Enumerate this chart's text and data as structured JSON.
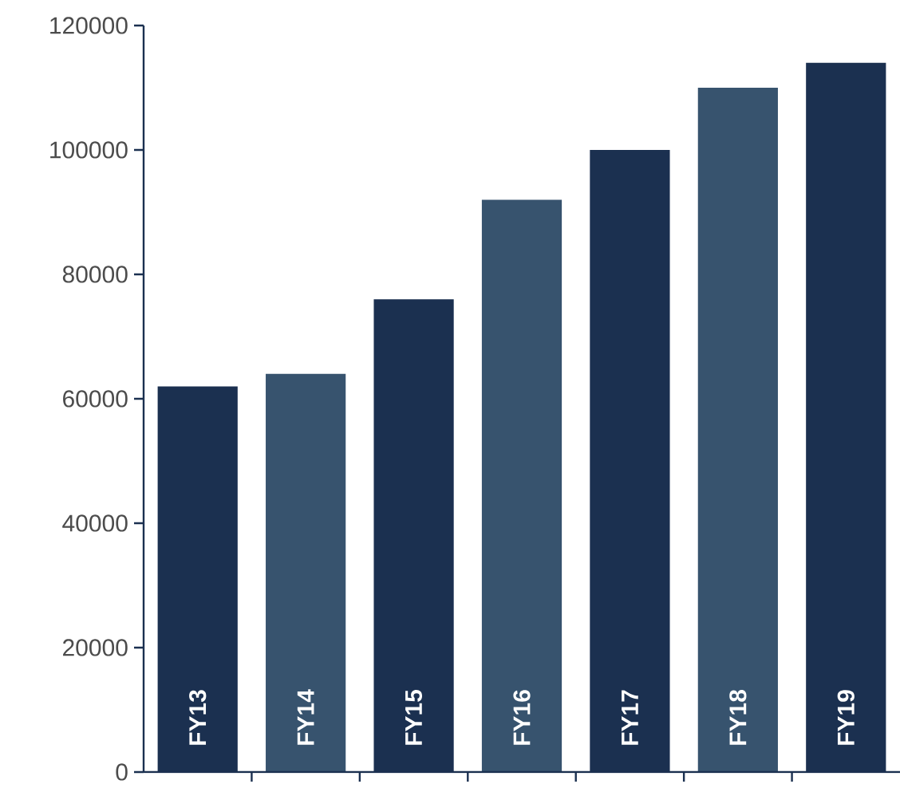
{
  "chart_data": {
    "type": "bar",
    "categories": [
      "FY13",
      "FY14",
      "FY15",
      "FY16",
      "FY17",
      "FY18",
      "FY19"
    ],
    "values": [
      62000,
      64000,
      76000,
      92000,
      100000,
      110000,
      114000
    ],
    "colors": [
      "#1b3050",
      "#37536e",
      "#1b3050",
      "#37536e",
      "#1b3050",
      "#37536e",
      "#1b3050"
    ],
    "ylim": [
      0,
      120000
    ],
    "yticks": [
      0,
      20000,
      40000,
      60000,
      80000,
      100000,
      120000
    ],
    "grid": false
  }
}
